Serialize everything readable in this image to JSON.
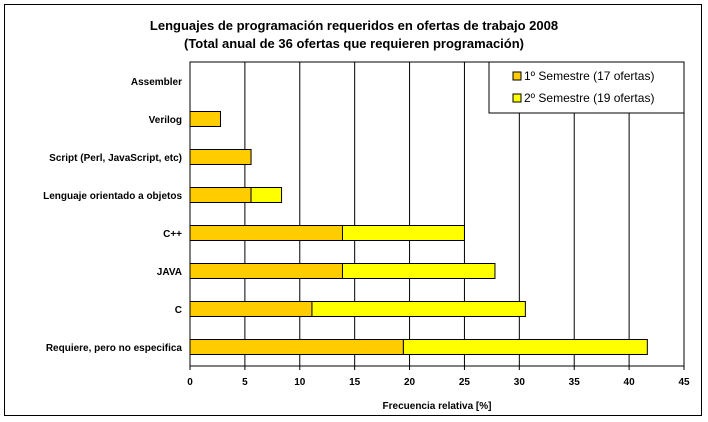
{
  "chart_data": {
    "type": "bar",
    "orientation": "horizontal",
    "stacked": true,
    "title": "Lenguajes de programación requeridos en ofertas de trabajo 2008",
    "subtitle": "(Total anual de 36 ofertas que requieren programación)",
    "xlabel": "Frecuencia relativa [%]",
    "ylabel": "",
    "xlim": [
      0,
      45
    ],
    "xticks": [
      0,
      5,
      10,
      15,
      20,
      25,
      30,
      35,
      40,
      45
    ],
    "grid": "vertical",
    "legend_position": "top-right",
    "categories": [
      "Assembler",
      "Verilog",
      "Script (Perl, JavaScript, etc)",
      "Lenguaje orientado a objetos",
      "C++",
      "JAVA",
      "C",
      "Requiere, pero no especifica"
    ],
    "series": [
      {
        "name": "1º Semestre (17 ofertas)",
        "color": "#FFCC00",
        "values": [
          0,
          2.78,
          5.56,
          5.56,
          13.89,
          13.89,
          11.11,
          19.44
        ]
      },
      {
        "name": "2º Semestre (19 ofertas)",
        "color": "#FFFF00",
        "values": [
          0,
          0,
          0,
          2.78,
          11.11,
          13.89,
          19.44,
          22.22
        ]
      }
    ]
  }
}
